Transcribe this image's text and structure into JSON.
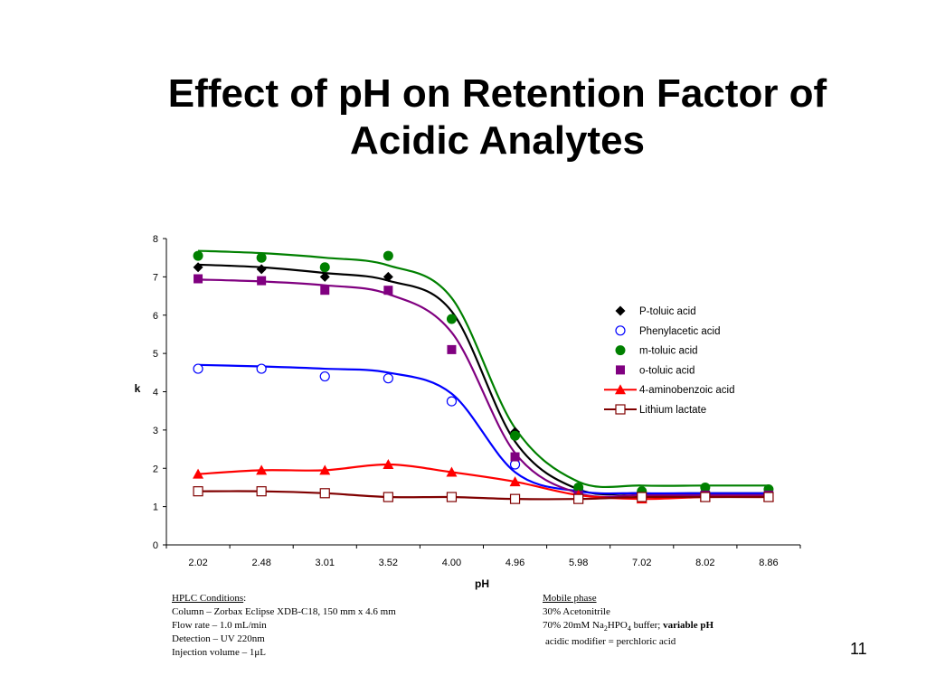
{
  "slide": {
    "title_line1": "Effect of pH on Retention Factor of",
    "title_line2": "Acidic Analytes",
    "number": "11"
  },
  "conditions_left": {
    "heading": "HPLC Conditions",
    "heading_suffix": ":",
    "column": "Column – Zorbax Eclipse XDB-C18, 150 mm x 4.6 mm",
    "flow": "Flow rate – 1.0 mL/min",
    "detection": "Detection – UV  220nm",
    "injection": "Injection volume – 1μL"
  },
  "conditions_right": {
    "heading": "Mobile phase",
    "acetonitrile": "30% Acetonitrile",
    "buffer_prefix": "70% 20mM Na",
    "buffer_sub1": "2",
    "buffer_mid": "HPO",
    "buffer_sub2": "4",
    "buffer_suffix": " buffer; ",
    "buffer_bold": "variable pH",
    "modifier": "acidic modifier = perchloric acid"
  },
  "chart_data": {
    "type": "scatter",
    "title": "",
    "xlabel": "pH",
    "ylabel": "k",
    "categories": [
      "2.02",
      "2.48",
      "3.01",
      "3.52",
      "4.00",
      "4.96",
      "5.98",
      "7.02",
      "8.02",
      "8.86"
    ],
    "ylim": [
      0,
      8
    ],
    "yticks": [
      0,
      1,
      2,
      3,
      4,
      5,
      6,
      7,
      8
    ],
    "grid": false,
    "legend_position": "right",
    "series": [
      {
        "name": "P-toluic acid",
        "marker": "diamond-filled",
        "color": "#000000",
        "line_color": "#000000",
        "values": [
          7.25,
          7.2,
          7.0,
          7.0,
          5.9,
          2.95,
          1.45,
          1.35,
          1.4,
          1.35
        ],
        "fit": [
          7.32,
          7.25,
          7.1,
          6.9,
          6.1,
          2.7,
          1.45,
          1.35,
          1.35,
          1.35
        ]
      },
      {
        "name": "Phenylacetic acid",
        "marker": "circle-open",
        "color": "#0000ff",
        "line_color": "#0000ff",
        "values": [
          4.6,
          4.6,
          4.4,
          4.35,
          3.75,
          2.1,
          1.4,
          1.35,
          1.35,
          1.35
        ],
        "fit": [
          4.7,
          4.66,
          4.6,
          4.5,
          3.95,
          1.9,
          1.4,
          1.35,
          1.35,
          1.35
        ]
      },
      {
        "name": "m-toluic acid",
        "marker": "circle-filled",
        "color": "#008000",
        "line_color": "#008000",
        "values": [
          7.55,
          7.5,
          7.25,
          7.55,
          5.9,
          2.85,
          1.5,
          1.4,
          1.5,
          1.45
        ],
        "fit": [
          7.68,
          7.62,
          7.5,
          7.3,
          6.45,
          3.05,
          1.65,
          1.55,
          1.55,
          1.55
        ]
      },
      {
        "name": "o-toluic acid",
        "marker": "square-filled",
        "color": "#800080",
        "line_color": "#800080",
        "values": [
          6.95,
          6.9,
          6.65,
          6.65,
          5.1,
          2.3,
          1.3,
          1.25,
          1.3,
          1.3
        ],
        "fit": [
          6.93,
          6.88,
          6.78,
          6.55,
          5.55,
          2.4,
          1.35,
          1.3,
          1.3,
          1.3
        ]
      },
      {
        "name": "4-aminobenzoic acid",
        "marker": "triangle-filled",
        "color": "#ff0000",
        "line_color": "#ff0000",
        "values": [
          1.85,
          1.95,
          1.95,
          2.1,
          1.9,
          1.65,
          1.3,
          1.2,
          1.25,
          1.25
        ],
        "fit": [
          1.85,
          1.95,
          1.95,
          2.1,
          1.9,
          1.65,
          1.3,
          1.2,
          1.25,
          1.25
        ]
      },
      {
        "name": "Lithium lactate",
        "marker": "square-open",
        "color": "#800000",
        "line_color": "#800000",
        "values": [
          1.4,
          1.4,
          1.35,
          1.25,
          1.25,
          1.2,
          1.2,
          1.25,
          1.25,
          1.25
        ],
        "fit": [
          1.4,
          1.4,
          1.35,
          1.25,
          1.25,
          1.2,
          1.2,
          1.25,
          1.25,
          1.25
        ]
      }
    ]
  }
}
